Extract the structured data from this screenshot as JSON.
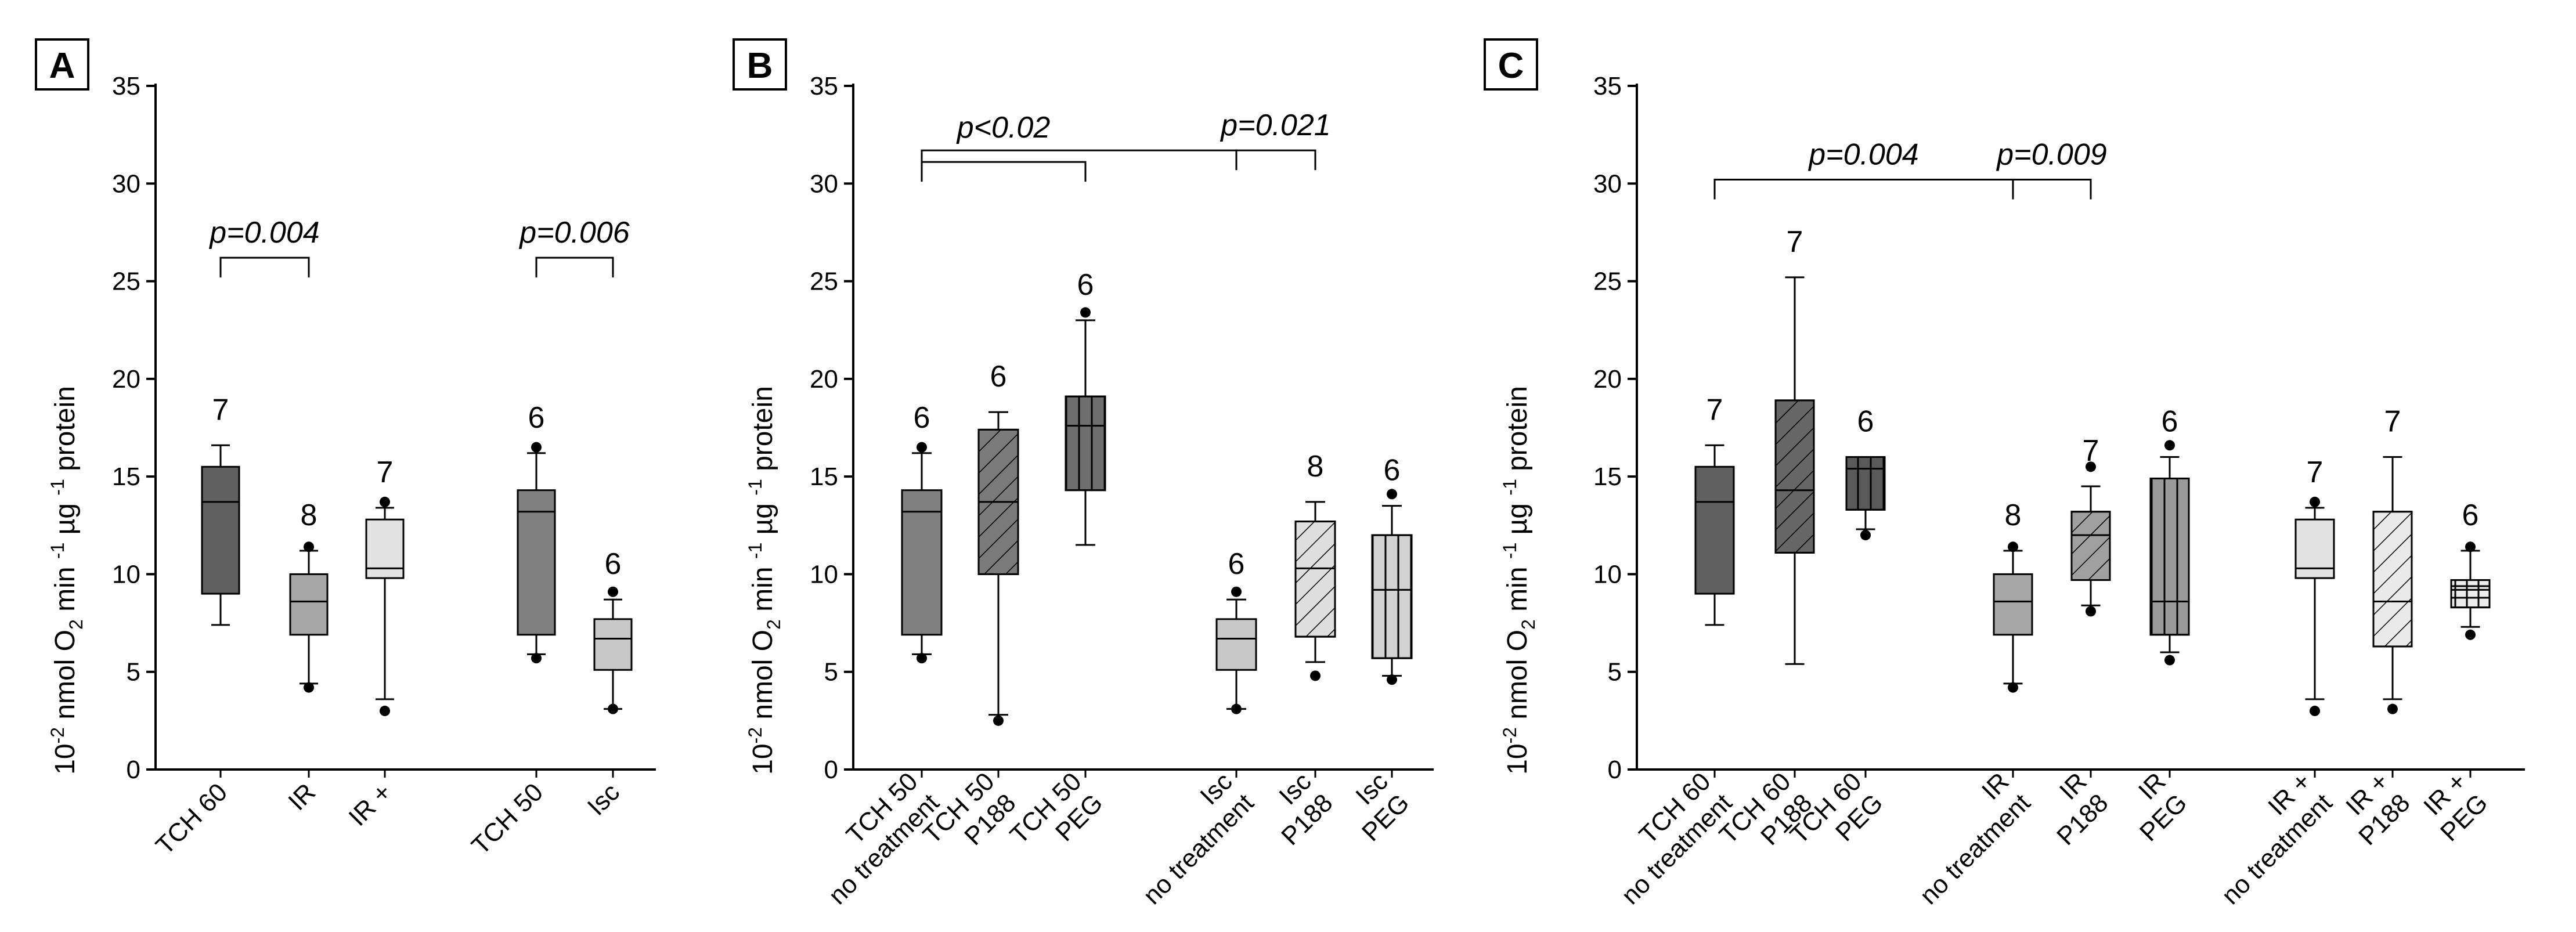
{
  "chart_data": [
    {
      "type": "box",
      "panel": "A",
      "ylabel_parts": [
        "10",
        "-2",
        " nmol O",
        "2",
        " min ",
        "-1",
        " µg ",
        "-1",
        " protein"
      ],
      "ylim": [
        0,
        35
      ],
      "yticks": [
        0,
        5,
        10,
        15,
        20,
        25,
        30,
        35
      ],
      "boxes": [
        {
          "label": [
            "TCH 60"
          ],
          "n": "7",
          "whisker_low": 7.4,
          "q1": 9.0,
          "median": 13.7,
          "q3": 15.5,
          "whisker_high": 16.6,
          "outliers": [],
          "color": "#5f5f5f",
          "pattern": "none"
        },
        {
          "label": [
            "IR"
          ],
          "n": "8",
          "whisker_low": 4.4,
          "q1": 6.9,
          "median": 8.6,
          "q3": 10.0,
          "whisker_high": 11.2,
          "outliers": [
            4.2,
            11.4
          ],
          "color": "#a6a6a6",
          "pattern": "none"
        },
        {
          "label": [
            "IR +"
          ],
          "n": "7",
          "whisker_low": 3.6,
          "q1": 9.8,
          "median": 10.3,
          "q3": 12.8,
          "whisker_high": 13.4,
          "outliers": [
            3.0,
            13.7
          ],
          "color": "#e2e2e2",
          "pattern": "none"
        },
        {
          "label": [
            "TCH 50"
          ],
          "n": "6",
          "whisker_low": 5.9,
          "q1": 6.9,
          "median": 13.2,
          "q3": 14.3,
          "whisker_high": 16.2,
          "outliers": [
            5.7,
            16.5
          ],
          "color": "#808080",
          "pattern": "none"
        },
        {
          "label": [
            "Isc"
          ],
          "n": "6",
          "whisker_low": 3.1,
          "q1": 5.1,
          "median": 6.7,
          "q3": 7.7,
          "whisker_high": 8.7,
          "outliers": [
            3.1,
            9.1
          ],
          "color": "#c8c8c8",
          "pattern": "none"
        }
      ],
      "annotations": [
        {
          "text": "p=0.004",
          "from": 0,
          "to": 1,
          "y": 26.2
        },
        {
          "text": "p=0.006",
          "from": 3,
          "to": 4,
          "y": 26.2
        }
      ]
    },
    {
      "type": "box",
      "panel": "B",
      "ylabel_parts": [
        "10",
        "-2",
        " nmol O",
        "2",
        " min ",
        "-1",
        " µg ",
        "-1",
        " protein"
      ],
      "ylim": [
        0,
        35
      ],
      "yticks": [
        0,
        5,
        10,
        15,
        20,
        25,
        30,
        35
      ],
      "boxes": [
        {
          "label": [
            "TCH 50",
            "no treatment"
          ],
          "n": "6",
          "whisker_low": 5.9,
          "q1": 6.9,
          "median": 13.2,
          "q3": 14.3,
          "whisker_high": 16.2,
          "outliers": [
            5.7,
            16.5
          ],
          "color": "#808080",
          "pattern": "none"
        },
        {
          "label": [
            "TCH 50",
            "P188"
          ],
          "n": "6",
          "whisker_low": 2.8,
          "q1": 10.0,
          "median": 13.7,
          "q3": 17.4,
          "whisker_high": 18.3,
          "outliers": [
            2.5
          ],
          "color": "#7a7a7a",
          "pattern": "diag"
        },
        {
          "label": [
            "TCH 50",
            "PEG"
          ],
          "n": "6",
          "whisker_low": 11.5,
          "q1": 14.3,
          "median": 17.6,
          "q3": 19.1,
          "whisker_high": 23.0,
          "outliers": [
            23.4
          ],
          "color": "#6e6e6e",
          "pattern": "vert"
        },
        {
          "label": [
            "Isc",
            "no treatment"
          ],
          "n": "6",
          "whisker_low": 3.1,
          "q1": 5.1,
          "median": 6.7,
          "q3": 7.7,
          "whisker_high": 8.7,
          "outliers": [
            3.1,
            9.1
          ],
          "color": "#c8c8c8",
          "pattern": "none"
        },
        {
          "label": [
            "Isc",
            "P188"
          ],
          "n": "8",
          "whisker_low": 5.5,
          "q1": 6.8,
          "median": 10.3,
          "q3": 12.7,
          "whisker_high": 13.7,
          "outliers": [
            4.8
          ],
          "color": "#dedede",
          "pattern": "diag"
        },
        {
          "label": [
            "Isc",
            "PEG"
          ],
          "n": "6",
          "whisker_low": 4.8,
          "q1": 5.7,
          "median": 9.2,
          "q3": 12.0,
          "whisker_high": 13.5,
          "outliers": [
            4.6,
            14.1
          ],
          "color": "#d2d2d2",
          "pattern": "vert"
        }
      ],
      "annotations": [
        {
          "text": "p<0.02",
          "from": 0,
          "to": 2,
          "y": 31.7,
          "outer": 3
        },
        {
          "text": "p=0.021",
          "from": 3,
          "to": 4,
          "y": 31.7
        }
      ]
    },
    {
      "type": "box",
      "panel": "C",
      "ylabel_parts": [
        "10",
        "-2",
        " nmol O",
        "2",
        " min ",
        "-1",
        " µg ",
        "-1",
        " protein"
      ],
      "ylim": [
        0,
        35
      ],
      "yticks": [
        0,
        5,
        10,
        15,
        20,
        25,
        30,
        35
      ],
      "boxes": [
        {
          "label": [
            "TCH 60",
            "no treatment"
          ],
          "n": "7",
          "whisker_low": 7.4,
          "q1": 9.0,
          "median": 13.7,
          "q3": 15.5,
          "whisker_high": 16.6,
          "outliers": [],
          "color": "#5f5f5f",
          "pattern": "none"
        },
        {
          "label": [
            "TCH 60",
            "P188"
          ],
          "n": "7",
          "whisker_low": 5.4,
          "q1": 11.1,
          "median": 14.3,
          "q3": 18.9,
          "whisker_high": 25.2,
          "outliers": [],
          "color": "#666666",
          "pattern": "diag"
        },
        {
          "label": [
            "TCH 60",
            "PEG"
          ],
          "n": "6",
          "whisker_low": 12.3,
          "q1": 13.3,
          "median": 15.4,
          "q3": 16.0,
          "whisker_high": 16.0,
          "outliers": [
            12.0
          ],
          "color": "#5a5a5a",
          "pattern": "vert"
        },
        {
          "label": [
            "IR",
            "no treatment"
          ],
          "n": "8",
          "whisker_low": 4.4,
          "q1": 6.9,
          "median": 8.6,
          "q3": 10.0,
          "whisker_high": 11.2,
          "outliers": [
            4.2,
            11.4
          ],
          "color": "#a6a6a6",
          "pattern": "none"
        },
        {
          "label": [
            "IR",
            "P188"
          ],
          "n": "7",
          "whisker_low": 8.4,
          "q1": 9.7,
          "median": 12.0,
          "q3": 13.2,
          "whisker_high": 14.5,
          "outliers": [
            8.1,
            15.5
          ],
          "color": "#a0a0a0",
          "pattern": "diag"
        },
        {
          "label": [
            "IR",
            "PEG"
          ],
          "n": "6",
          "whisker_low": 6.0,
          "q1": 6.9,
          "median": 8.6,
          "q3": 14.9,
          "whisker_high": 16.0,
          "outliers": [
            5.6,
            16.6
          ],
          "color": "#9a9a9a",
          "pattern": "vert"
        },
        {
          "label": [
            "IR +",
            "no treatment"
          ],
          "n": "7",
          "whisker_low": 3.6,
          "q1": 9.8,
          "median": 10.3,
          "q3": 12.8,
          "whisker_high": 13.4,
          "outliers": [
            3.0,
            13.7
          ],
          "color": "#e2e2e2",
          "pattern": "none"
        },
        {
          "label": [
            "IR +",
            "P188"
          ],
          "n": "7",
          "whisker_low": 3.6,
          "q1": 6.3,
          "median": 8.6,
          "q3": 13.2,
          "whisker_high": 16.0,
          "outliers": [
            3.1
          ],
          "color": "#eaeaea",
          "pattern": "diag"
        },
        {
          "label": [
            "IR +",
            "PEG"
          ],
          "n": "6",
          "whisker_low": 7.3,
          "q1": 8.3,
          "median": 9.2,
          "q3": 9.7,
          "whisker_high": 11.2,
          "outliers": [
            6.9,
            11.4
          ],
          "color": "#ececec",
          "pattern": "grid"
        }
      ],
      "annotations": [
        {
          "text": "p=0.004",
          "from": 0,
          "to": 3,
          "y": 30.2
        },
        {
          "text": "p=0.009",
          "from": 3,
          "to": 4,
          "y": 30.2
        }
      ]
    }
  ]
}
